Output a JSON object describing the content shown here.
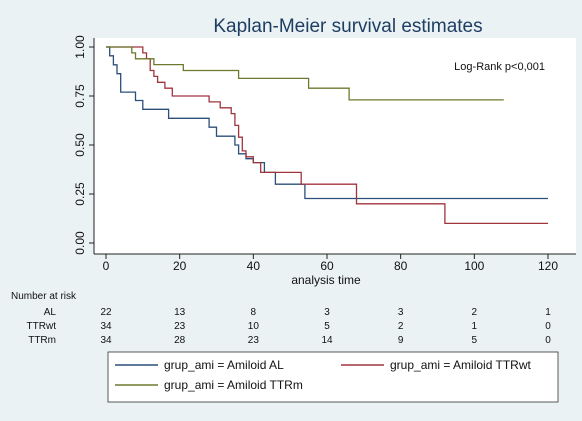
{
  "chart_data": {
    "type": "line",
    "title": "Kaplan-Meier survival estimates",
    "xlabel": "analysis time",
    "ylabel": "",
    "xlim": [
      0,
      120
    ],
    "ylim": [
      0,
      1
    ],
    "x_ticks": [
      "0",
      "20",
      "40",
      "60",
      "80",
      "100",
      "120"
    ],
    "y_ticks": [
      "0.00",
      "0.25",
      "0.50",
      "0.75",
      "1.00"
    ],
    "annotation": "Log-Rank p<0,001",
    "colors": {
      "al": "#2b4f7a",
      "ttrwt": "#a0353e",
      "ttrm": "#6b7a2e",
      "background": "#eaf2f3",
      "plot_bg": "#ffffff"
    },
    "series": [
      {
        "key": "al",
        "name": "grup_ami = Amiloid AL",
        "points": [
          [
            0,
            1.0
          ],
          [
            1,
            0.955
          ],
          [
            2,
            0.909
          ],
          [
            3,
            0.864
          ],
          [
            4,
            0.77
          ],
          [
            8,
            0.727
          ],
          [
            10,
            0.682
          ],
          [
            17,
            0.636
          ],
          [
            23,
            0.636
          ],
          [
            28,
            0.591
          ],
          [
            30,
            0.545
          ],
          [
            35,
            0.5
          ],
          [
            36,
            0.455
          ],
          [
            38,
            0.43
          ],
          [
            40,
            0.41
          ],
          [
            42,
            0.41
          ],
          [
            43,
            0.36
          ],
          [
            46,
            0.3
          ],
          [
            53,
            0.3
          ],
          [
            54,
            0.227
          ],
          [
            120,
            0.227
          ]
        ]
      },
      {
        "key": "ttrwt",
        "name": "grup_ami = Amiloid TTRwt",
        "points": [
          [
            0,
            1.0
          ],
          [
            9,
            1.0
          ],
          [
            10,
            0.97
          ],
          [
            11,
            0.94
          ],
          [
            12,
            0.88
          ],
          [
            13,
            0.85
          ],
          [
            14,
            0.82
          ],
          [
            16,
            0.79
          ],
          [
            18,
            0.75
          ],
          [
            26,
            0.75
          ],
          [
            28,
            0.72
          ],
          [
            31,
            0.69
          ],
          [
            34,
            0.66
          ],
          [
            35,
            0.6
          ],
          [
            36,
            0.54
          ],
          [
            37,
            0.47
          ],
          [
            38,
            0.44
          ],
          [
            40,
            0.41
          ],
          [
            42,
            0.36
          ],
          [
            53,
            0.3
          ],
          [
            67,
            0.3
          ],
          [
            68,
            0.2
          ],
          [
            91,
            0.2
          ],
          [
            92,
            0.1
          ],
          [
            120,
            0.1
          ]
        ]
      },
      {
        "key": "ttrm",
        "name": "grup_ami = Amiloid TTRm",
        "points": [
          [
            0,
            1.0
          ],
          [
            6,
            1.0
          ],
          [
            7,
            0.97
          ],
          [
            8,
            0.94
          ],
          [
            13,
            0.91
          ],
          [
            21,
            0.88
          ],
          [
            35,
            0.88
          ],
          [
            36,
            0.84
          ],
          [
            54,
            0.84
          ],
          [
            55,
            0.79
          ],
          [
            65,
            0.79
          ],
          [
            66,
            0.73
          ],
          [
            108,
            0.73
          ]
        ]
      }
    ],
    "risk_table": {
      "header": "Number at risk",
      "times": [
        0,
        20,
        40,
        60,
        80,
        100,
        120
      ],
      "rows": [
        {
          "label": "AL",
          "values": [
            "22",
            "13",
            "8",
            "3",
            "3",
            "2",
            "1"
          ]
        },
        {
          "label": "TTRwt",
          "values": [
            "34",
            "23",
            "10",
            "5",
            "2",
            "1",
            "0"
          ]
        },
        {
          "label": "TTRm",
          "values": [
            "34",
            "28",
            "23",
            "14",
            "9",
            "5",
            "0"
          ]
        }
      ]
    },
    "legend": [
      {
        "key": "al",
        "label": "grup_ami = Amiloid AL"
      },
      {
        "key": "ttrwt",
        "label": "grup_ami = Amiloid TTRwt"
      },
      {
        "key": "ttrm",
        "label": "grup_ami = Amiloid TTRm"
      }
    ]
  }
}
